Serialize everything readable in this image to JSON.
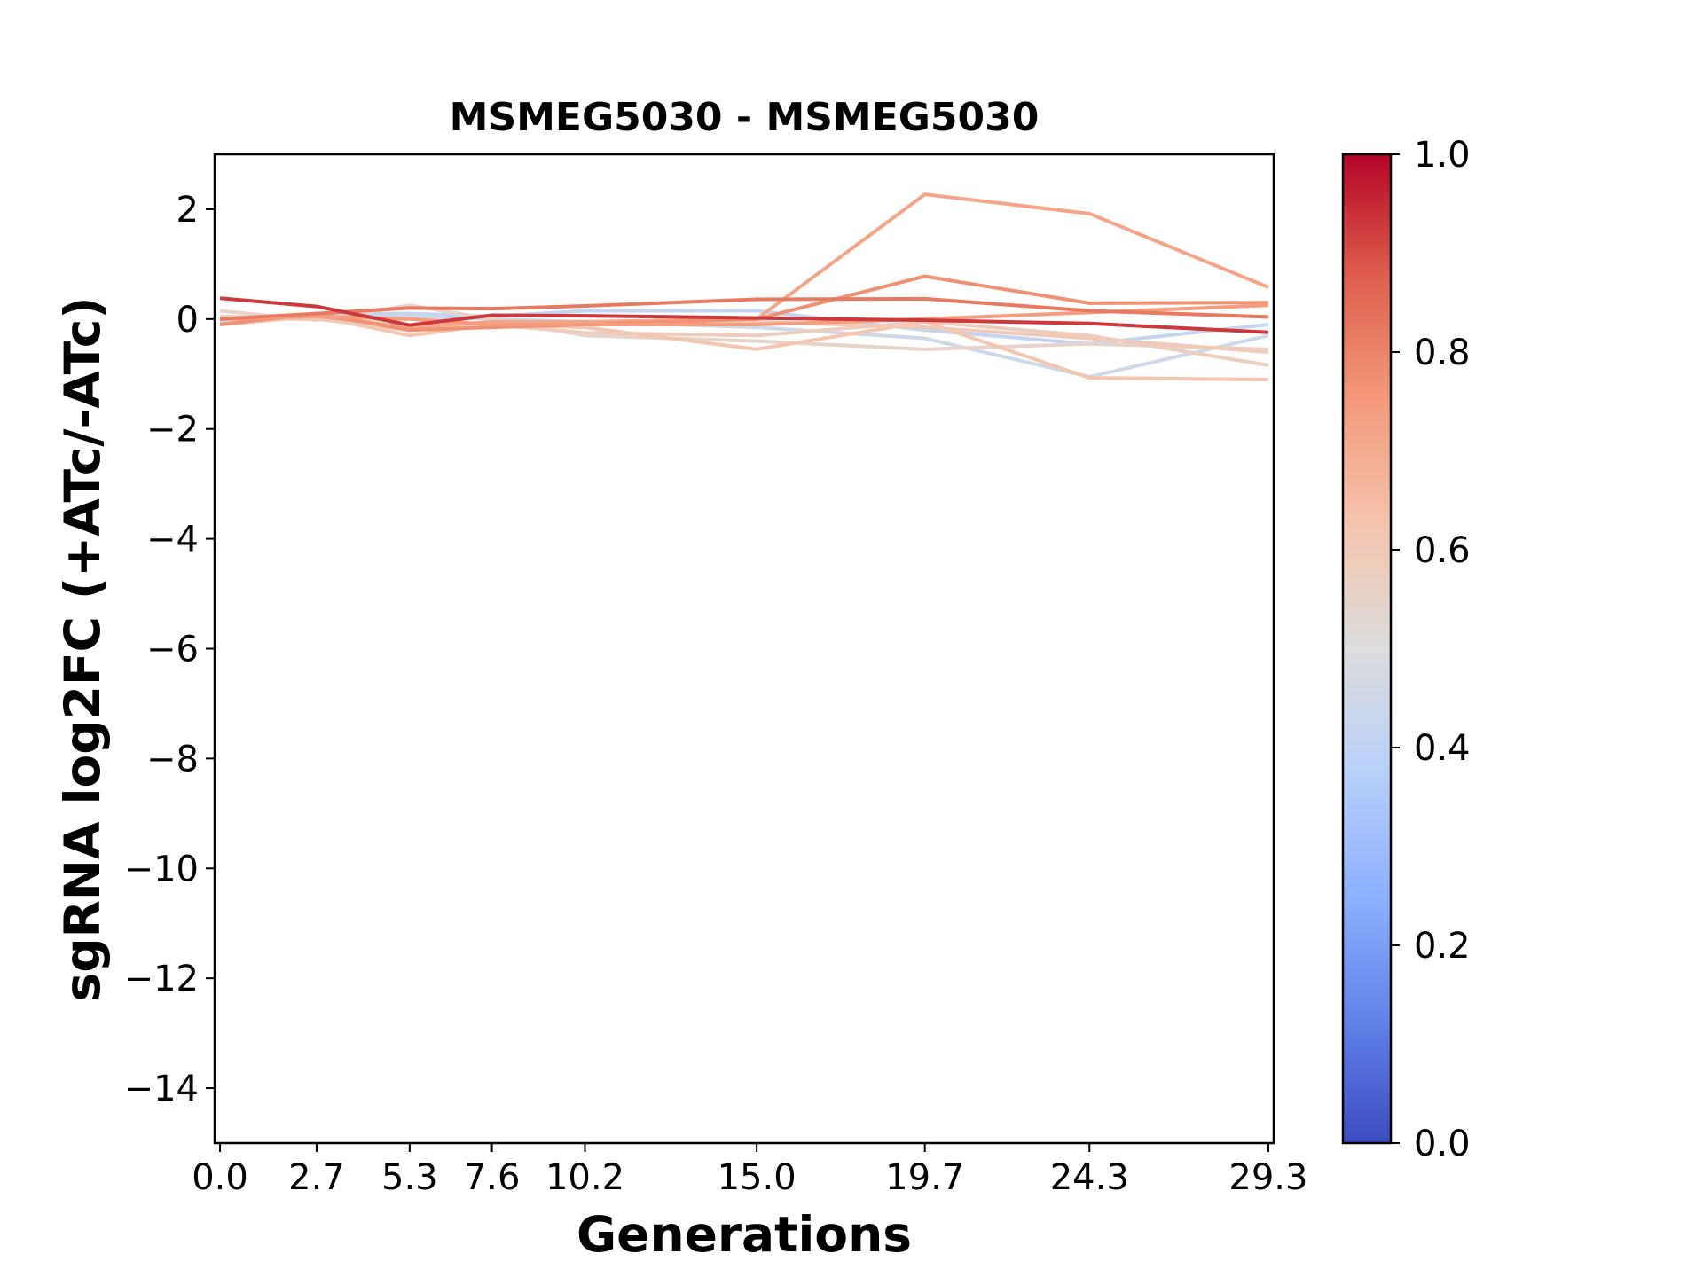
{
  "chart_data": {
    "type": "line",
    "title": "MSMEG5030 - MSMEG5030",
    "xlabel": "Generations",
    "ylabel": "sgRNA log2FC (+ATc/-ATc)",
    "x": [
      0.0,
      2.7,
      5.3,
      7.6,
      10.2,
      15.0,
      19.7,
      24.3,
      29.3
    ],
    "x_tick_labels": [
      "0.0",
      "2.7",
      "5.3",
      "7.6",
      "10.2",
      "15.0",
      "19.7",
      "24.3",
      "29.3"
    ],
    "xlim": [
      -0.15,
      29.45
    ],
    "ylim": [
      -15,
      3
    ],
    "y_ticks": [
      2,
      0,
      -2,
      -4,
      -6,
      -8,
      -10,
      -12,
      -14
    ],
    "y_tick_labels": [
      "2",
      "0",
      "−2",
      "−4",
      "−6",
      "−8",
      "−10",
      "−12",
      "−14"
    ],
    "grid": false,
    "colormap": "coolwarm",
    "colorbar": {
      "range": [
        0,
        1
      ],
      "ticks": [
        0.0,
        0.2,
        0.4,
        0.6,
        0.8,
        1.0
      ],
      "tick_labels": [
        "0.0",
        "0.2",
        "0.4",
        "0.6",
        "0.8",
        "1.0"
      ]
    },
    "series": [
      {
        "color_value": 0.45,
        "values": [
          0.0,
          0.08,
          0.05,
          0.0,
          -0.05,
          -0.15,
          -0.35,
          -1.05,
          -0.3
        ]
      },
      {
        "color_value": 0.42,
        "values": [
          -0.05,
          0.1,
          0.1,
          0.05,
          0.15,
          0.15,
          -0.2,
          -0.45,
          -0.1
        ]
      },
      {
        "color_value": 0.55,
        "values": [
          0.15,
          -0.02,
          0.25,
          0.0,
          -0.3,
          -0.4,
          -0.55,
          -0.45,
          -0.55
        ]
      },
      {
        "color_value": 0.58,
        "values": [
          0.05,
          0.0,
          0.0,
          -0.1,
          -0.25,
          -0.3,
          -0.05,
          -0.3,
          -0.84
        ]
      },
      {
        "color_value": 0.62,
        "values": [
          -0.1,
          0.05,
          -0.3,
          -0.1,
          -0.15,
          -0.55,
          -0.05,
          -1.07,
          -1.1
        ]
      },
      {
        "color_value": 0.6,
        "values": [
          0.0,
          0.0,
          -0.2,
          -0.05,
          -0.1,
          -0.05,
          -0.15,
          -0.35,
          -0.6
        ]
      },
      {
        "color_value": 0.72,
        "values": [
          0.0,
          0.05,
          -0.15,
          -0.05,
          -0.05,
          0.0,
          2.27,
          1.92,
          0.58
        ]
      },
      {
        "color_value": 0.77,
        "values": [
          -0.1,
          0.1,
          -0.2,
          -0.15,
          -0.1,
          0.0,
          0.78,
          0.29,
          0.3
        ]
      },
      {
        "color_value": 0.74,
        "values": [
          0.0,
          0.05,
          0.0,
          -0.1,
          -0.1,
          -0.1,
          0.0,
          0.12,
          0.25
        ]
      },
      {
        "color_value": 0.82,
        "values": [
          0.0,
          0.1,
          0.2,
          0.19,
          0.24,
          0.36,
          0.37,
          0.15,
          0.04
        ]
      },
      {
        "color_value": 0.93,
        "values": [
          0.38,
          0.23,
          -0.11,
          0.07,
          0.06,
          0.02,
          -0.02,
          -0.08,
          -0.24
        ]
      }
    ]
  }
}
